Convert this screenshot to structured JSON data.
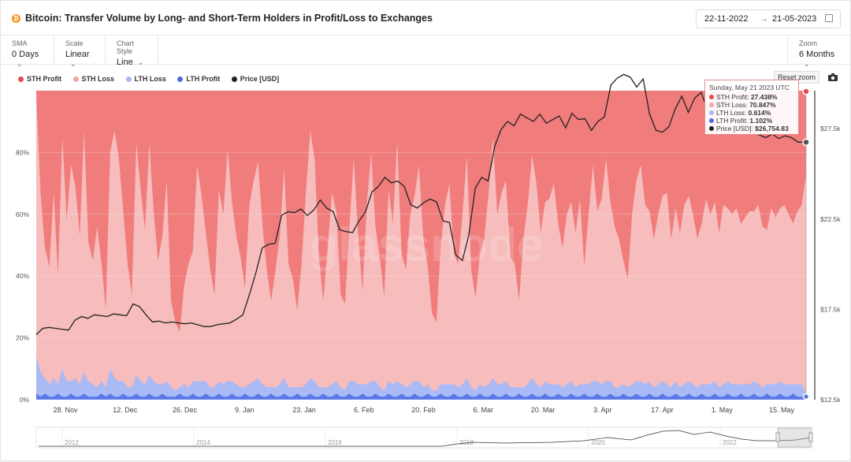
{
  "header": {
    "title": "Bitcoin: Transfer Volume by Long- and Short-Term Holders in Profit/Loss to Exchanges",
    "date_from": "22-11-2022",
    "date_sep": "→",
    "date_to": "21-05-2023"
  },
  "controls": {
    "sma": {
      "label": "SMA",
      "value": "0 Days"
    },
    "scale": {
      "label": "Scale",
      "value": "Linear"
    },
    "chart_style": {
      "label": "Chart Style",
      "value": "Line"
    },
    "zoom": {
      "label": "Zoom",
      "value": "6 Months"
    }
  },
  "reset_zoom": "Reset zoom",
  "watermark": "glassnode",
  "colors": {
    "sth_profit": "#f07c7c",
    "sth_loss": "#f7bcbc",
    "lth_loss": "#aabaf5",
    "lth_profit": "#5c78e8",
    "price": "#222222"
  },
  "tooltip": {
    "date": "Sunday, May 21 2023 UTC",
    "rows": [
      {
        "label": "STH Profit:",
        "value": "27.438%"
      },
      {
        "label": "STH Loss:",
        "value": "70.847%"
      },
      {
        "label": "LTH Loss:",
        "value": "0.614%"
      },
      {
        "label": "LTH Profit:",
        "value": "1.102%"
      },
      {
        "label": "Price [USD]:",
        "value": "$26,754.83"
      }
    ]
  },
  "chart_data": {
    "type": "area",
    "title": "Bitcoin: Transfer Volume by Long- and Short-Term Holders in Profit/Loss to Exchanges",
    "x_ticks": [
      "28. Nov",
      "12. Dec",
      "26. Dec",
      "9. Jan",
      "23. Jan",
      "6. Feb",
      "20. Feb",
      "6. Mar",
      "20. Mar",
      "3. Apr",
      "17. Apr",
      "1. May",
      "15. May"
    ],
    "y_left_ticks": [
      "0%",
      "20%",
      "40%",
      "60%",
      "80%"
    ],
    "y_left_range": [
      0,
      100
    ],
    "y_right_ticks": [
      "$12.5k",
      "$17.5k",
      "$22.5k",
      "$27.5k"
    ],
    "y_right_range": [
      12500,
      29600
    ],
    "navigator_years": [
      "2012",
      "2014",
      "2016",
      "2018",
      "2020",
      "2022"
    ],
    "legend": [
      "STH Profit",
      "STH Loss",
      "LTH Loss",
      "LTH Profit",
      "Price [USD]"
    ],
    "x_start": "2022-11-22",
    "series": [
      {
        "name": "STH Loss",
        "values": [
          85,
          58,
          42,
          38,
          60,
          35,
          75,
          52,
          70,
          62,
          48,
          78,
          45,
          40,
          52,
          38,
          25,
          70,
          80,
          72,
          55,
          40,
          30,
          75,
          62,
          50,
          75,
          55,
          40,
          48,
          65,
          28,
          22,
          18,
          32,
          40,
          42,
          70,
          60,
          48,
          38,
          30,
          62,
          55,
          75,
          58,
          48,
          42,
          32,
          58,
          65,
          70,
          52,
          38,
          28,
          38,
          48,
          68,
          40,
          35,
          25,
          40,
          62,
          80,
          72,
          42,
          28,
          45,
          62,
          55,
          30,
          28,
          50,
          72,
          48,
          30,
          58,
          74,
          50,
          42,
          30,
          62,
          52,
          78,
          42,
          38,
          55,
          60,
          70,
          48,
          38,
          25,
          22,
          45,
          58,
          65,
          42,
          40,
          55,
          72,
          38,
          30,
          42,
          48,
          62,
          78,
          55,
          62,
          65,
          42,
          40,
          28,
          48,
          58,
          72,
          65,
          50,
          58,
          60,
          65,
          52,
          45,
          55,
          58,
          50,
          60,
          38,
          55,
          70,
          55,
          60,
          72,
          58,
          52,
          48,
          40,
          35,
          55,
          65,
          70,
          58,
          55,
          48,
          55,
          60,
          62,
          48,
          56,
          50,
          58,
          60,
          55,
          48,
          52,
          60,
          55,
          58,
          50,
          58,
          56,
          55,
          57,
          52,
          54,
          56,
          55,
          58,
          52,
          50,
          57,
          54,
          56,
          58,
          55,
          52,
          56,
          58,
          71
        ]
      },
      {
        "name": "LTH Loss",
        "values": [
          12,
          8,
          5,
          4,
          6,
          3,
          9,
          5,
          4,
          6,
          4,
          7,
          5,
          4,
          3,
          4,
          3,
          8,
          6,
          5,
          4,
          3,
          3,
          6,
          5,
          4,
          6,
          5,
          4,
          3,
          5,
          3,
          2,
          2,
          4,
          3,
          4,
          5,
          5,
          4,
          3,
          3,
          4,
          4,
          5,
          4,
          4,
          3,
          2,
          4,
          5,
          5,
          4,
          3,
          2,
          3,
          4,
          5,
          3,
          3,
          2,
          3,
          4,
          5,
          5,
          3,
          2,
          3,
          4,
          4,
          3,
          2,
          4,
          5,
          4,
          3,
          4,
          5,
          4,
          3,
          2,
          4,
          4,
          5,
          3,
          3,
          4,
          4,
          5,
          3,
          3,
          2,
          2,
          3,
          4,
          4,
          3,
          3,
          4,
          5,
          3,
          2,
          3,
          3,
          4,
          5,
          4,
          4,
          4,
          3,
          3,
          2,
          3,
          4,
          5,
          4,
          3,
          4,
          4,
          4,
          3,
          3,
          4,
          4,
          3,
          4,
          3,
          4,
          5,
          4,
          4,
          5,
          4,
          3,
          3,
          3,
          3,
          4,
          4,
          5,
          4,
          4,
          3,
          4,
          4,
          4,
          3,
          4,
          3,
          4,
          4,
          4,
          3,
          3,
          4,
          4,
          4,
          3,
          4,
          4,
          4,
          4,
          3,
          4,
          4,
          4,
          4,
          3,
          3,
          4,
          4,
          4,
          4,
          4,
          3,
          4,
          4,
          1
        ]
      },
      {
        "name": "LTH Profit",
        "values": [
          2,
          1,
          2,
          1,
          1,
          2,
          1,
          1,
          2,
          1,
          1,
          2,
          1,
          1,
          1,
          2,
          1,
          2,
          1,
          1,
          2,
          1,
          1,
          2,
          1,
          1,
          2,
          1,
          1,
          2,
          1,
          1,
          1,
          2,
          1,
          1,
          2,
          1,
          1,
          2,
          1,
          1,
          2,
          1,
          1,
          2,
          1,
          1,
          2,
          1,
          1,
          2,
          1,
          1,
          2,
          1,
          1,
          2,
          1,
          1,
          2,
          1,
          1,
          2,
          1,
          1,
          2,
          1,
          1,
          2,
          1,
          1,
          2,
          1,
          1,
          2,
          1,
          1,
          2,
          1,
          1,
          2,
          1,
          1,
          2,
          1,
          1,
          2,
          1,
          1,
          2,
          1,
          1,
          2,
          1,
          1,
          2,
          1,
          1,
          2,
          1,
          1,
          2,
          1,
          1,
          2,
          1,
          1,
          2,
          1,
          1,
          2,
          1,
          1,
          2,
          1,
          1,
          2,
          1,
          1,
          2,
          1,
          1,
          2,
          1,
          1,
          2,
          1,
          1,
          2,
          1,
          1,
          2,
          1,
          1,
          2,
          1,
          1,
          2,
          1,
          1,
          2,
          1,
          1,
          2,
          1,
          1,
          2,
          1,
          1,
          2,
          1,
          1,
          2,
          1,
          1,
          2,
          1,
          1,
          2,
          1,
          1,
          2,
          1,
          1,
          2,
          1,
          1,
          2,
          1,
          1,
          2,
          1,
          1,
          2,
          1,
          1,
          1
        ]
      },
      {
        "name": "Price [USD]",
        "values": [
          16100,
          16450,
          16500,
          16450,
          16400,
          16350,
          16900,
          17100,
          17000,
          17200,
          17150,
          17100,
          17250,
          17200,
          17150,
          17800,
          17650,
          17200,
          16800,
          16850,
          16750,
          16800,
          16750,
          16700,
          16750,
          16650,
          16550,
          16550,
          16650,
          16700,
          16750,
          16950,
          17200,
          18300,
          19500,
          20900,
          21100,
          21150,
          22700,
          22900,
          22850,
          23050,
          22700,
          23000,
          23550,
          23100,
          22900,
          21900,
          21800,
          21750,
          22400,
          22900,
          24000,
          24300,
          24800,
          24500,
          24600,
          24300,
          23300,
          23100,
          23400,
          23600,
          23450,
          22400,
          22300,
          20500,
          20200,
          21600,
          24200,
          24800,
          24600,
          26500,
          27450,
          27900,
          27650,
          28300,
          28100,
          27900,
          28300,
          27800,
          28000,
          28200,
          27550,
          28350,
          28000,
          28050,
          27400,
          27900,
          28150,
          29900,
          30300,
          30500,
          30350,
          29800,
          30250,
          28300,
          27400,
          27300,
          27600,
          28600,
          29300,
          28400,
          29200,
          29500,
          28500,
          29100,
          28700,
          29500,
          28900,
          27800,
          27650,
          27300,
          27150,
          27000,
          27200,
          26950,
          27100,
          27000,
          26750,
          26750
        ]
      }
    ],
    "tooltip_date": "Sunday, May 21 2023 UTC"
  }
}
